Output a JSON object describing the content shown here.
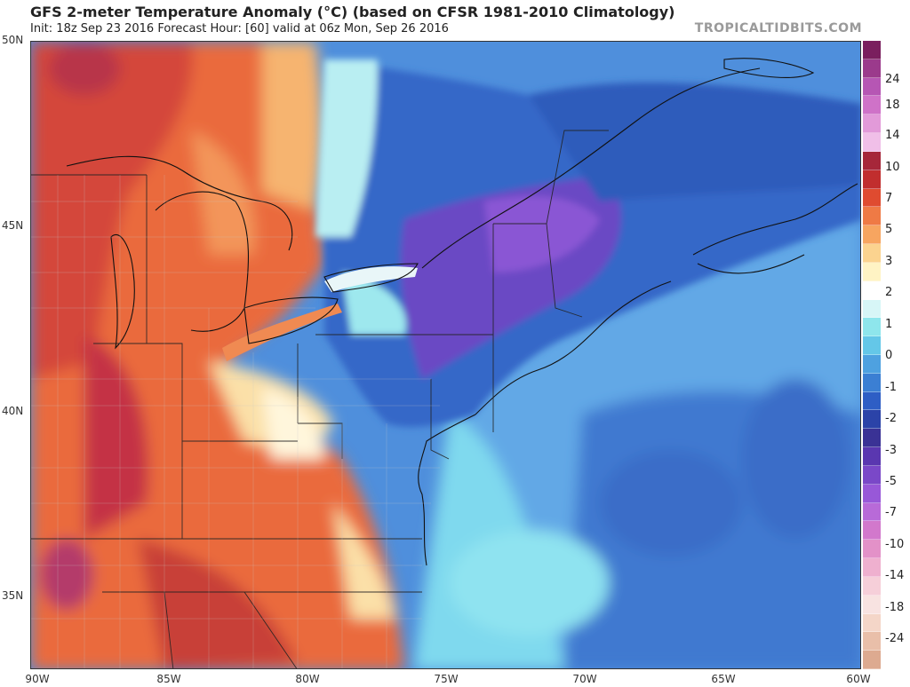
{
  "header": {
    "title": "GFS 2-meter Temperature Anomaly (°C) (based on CFSR 1981-2010 Climatology)",
    "subtitle": "Init: 18z Sep 23 2016   Forecast Hour: [60]   valid at 06z Mon, Sep 26 2016",
    "brand": "TROPICALTIDBITS.COM"
  },
  "map": {
    "lat_labels": [
      "50N",
      "45N",
      "40N",
      "35N"
    ],
    "lon_labels": [
      "90W",
      "85W",
      "80W",
      "75W",
      "70W",
      "65W",
      "60W"
    ]
  },
  "colorbar": {
    "labels": [
      "24",
      "18",
      "14",
      "10",
      "7",
      "5",
      "3",
      "2",
      "1",
      "0",
      "-1",
      "-2",
      "-3",
      "-5",
      "-7",
      "-10",
      "-14",
      "-18",
      "-24"
    ],
    "colors": [
      "#7a1f5e",
      "#9b3a8c",
      "#b656b4",
      "#cf72c8",
      "#e29ad9",
      "#f0bfe8",
      "#a6273a",
      "#c12e2e",
      "#df4b30",
      "#ef7a45",
      "#f7a560",
      "#fbd38f",
      "#fff3c4",
      "#ffffff",
      "#d7f6f7",
      "#8ee6ec",
      "#64c7e8",
      "#4ea1e0",
      "#3b7fd3",
      "#2e5ec5",
      "#2b43a8",
      "#3a3295",
      "#5a37b0",
      "#7a48c8",
      "#9858d8",
      "#b86ad8",
      "#d278cc",
      "#e391c8",
      "#efb0cf",
      "#f6cfd9",
      "#f8e3e1",
      "#f4d6c8",
      "#e9bfa9",
      "#ddaa90"
    ]
  }
}
